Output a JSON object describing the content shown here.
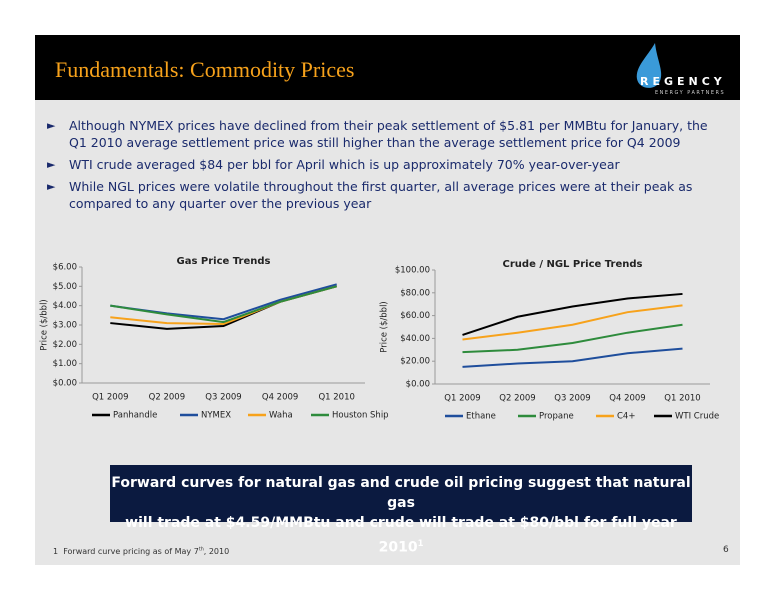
{
  "header": {
    "title": "Fundamentals: Commodity Prices"
  },
  "logo": {
    "name": "REGENCY",
    "subtitle": "ENERGY PARTNERS"
  },
  "bullets": [
    "Although NYMEX prices have declined from their peak settlement of $5.81 per MMBtu for January, the Q1 2010 average settlement price was still higher than the average settlement price for Q4 2009",
    "WTI crude averaged $84 per bbl for April which is up approximately 70% year-over-year",
    "While NGL prices were volatile throughout the first quarter, all average prices were at their peak as compared to any quarter over the previous year"
  ],
  "chart_data": [
    {
      "type": "line",
      "title": "Gas Price Trends",
      "y_label": "Price ($/bbl)",
      "categories": [
        "Q1 2009",
        "Q2 2009",
        "Q3 2009",
        "Q4 2009",
        "Q1 2010"
      ],
      "ylim": [
        0,
        6
      ],
      "yticks": [
        {
          "value": 0,
          "label": "$0.00"
        },
        {
          "value": 1,
          "label": "$1.00"
        },
        {
          "value": 2,
          "label": "$2.00"
        },
        {
          "value": 3,
          "label": "$3.00"
        },
        {
          "value": 4,
          "label": "$4.00"
        },
        {
          "value": 5,
          "label": "$5.00"
        },
        {
          "value": 6,
          "label": "$6.00"
        }
      ],
      "grid": false,
      "legend": "bottom",
      "series": [
        {
          "name": "Panhandle",
          "color": "#000000",
          "values": [
            3.1,
            2.8,
            2.95,
            4.2,
            5.0
          ]
        },
        {
          "name": "NYMEX",
          "color": "#1f4e9c",
          "values": [
            4.0,
            3.6,
            3.3,
            4.3,
            5.1
          ]
        },
        {
          "name": "Waha",
          "color": "#f7a21b",
          "values": [
            3.4,
            3.1,
            3.05,
            4.2,
            5.0
          ]
        },
        {
          "name": "Houston Ship",
          "color": "#2e8b3c",
          "values": [
            4.0,
            3.55,
            3.15,
            4.2,
            5.0
          ]
        }
      ]
    },
    {
      "type": "line",
      "title": "Crude / NGL Price Trends",
      "y_label": "Price ($/bbl)",
      "categories": [
        "Q1 2009",
        "Q2 2009",
        "Q3 2009",
        "Q4 2009",
        "Q1 2010"
      ],
      "ylim": [
        0,
        100
      ],
      "yticks": [
        {
          "value": 0,
          "label": "$0.00"
        },
        {
          "value": 20,
          "label": "$20.00"
        },
        {
          "value": 40,
          "label": "$40.00"
        },
        {
          "value": 60,
          "label": "$60.00"
        },
        {
          "value": 80,
          "label": "$80.00"
        },
        {
          "value": 100,
          "label": "$100.00"
        }
      ],
      "grid": false,
      "legend": "bottom",
      "series": [
        {
          "name": "Ethane",
          "color": "#1f4e9c",
          "values": [
            15,
            18,
            20,
            27,
            31
          ]
        },
        {
          "name": "Propane",
          "color": "#2e8b3c",
          "values": [
            28,
            30,
            36,
            45,
            52
          ]
        },
        {
          "name": "C4+",
          "color": "#f7a21b",
          "values": [
            39,
            45,
            52,
            63,
            69
          ]
        },
        {
          "name": "WTI Crude",
          "color": "#000000",
          "values": [
            43,
            59,
            68,
            75,
            79
          ]
        }
      ]
    }
  ],
  "callout": {
    "lines": [
      "Forward curves for natural gas and crude oil pricing suggest that natural gas",
      "will trade at $4.59/MMBtu and crude will trade at $80/bbl for full year 2010"
    ],
    "sup": "1"
  },
  "footnote": {
    "marker": "1",
    "text": "Forward curve pricing as of May 7",
    "sup": "th",
    "rest": ", 2010"
  },
  "page_number": "6"
}
